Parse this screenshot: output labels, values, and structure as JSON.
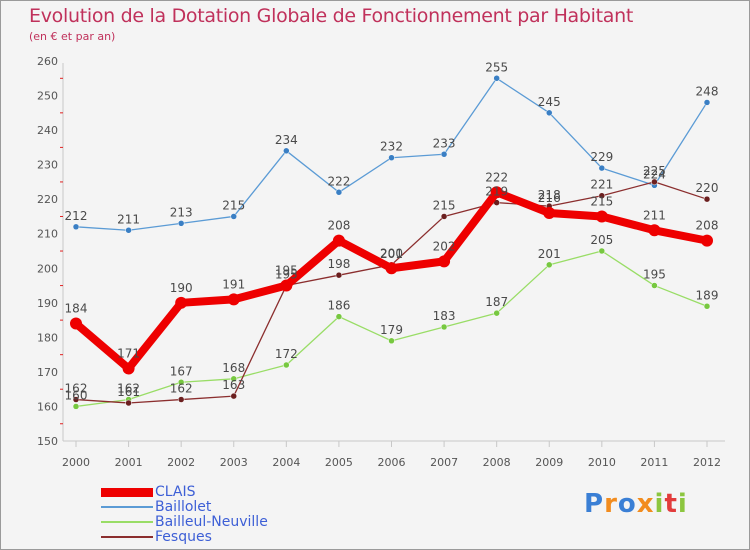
{
  "title": "Evolution de la Dotation Globale de Fonctionnement par Habitant",
  "subtitle": "(en € et par an)",
  "logo": {
    "letters": [
      "P",
      "r",
      "o",
      "x",
      "i",
      "t",
      "i"
    ],
    "colors": [
      "#3a7fd5",
      "#f28c1e",
      "#3a7fd5",
      "#f28c1e",
      "#8cc63f",
      "#e23b3b",
      "#8cc63f"
    ]
  },
  "chart_data": {
    "type": "line",
    "title": "Evolution de la Dotation Globale de Fonctionnement par Habitant",
    "subtitle": "(en € et par an)",
    "xlabel": "",
    "ylabel": "",
    "x": [
      "2000",
      "2001",
      "2002",
      "2003",
      "2004",
      "2005",
      "2006",
      "2007",
      "2008",
      "2009",
      "2010",
      "2011",
      "2012"
    ],
    "ylim": [
      150,
      260
    ],
    "yticks": [
      "150",
      "160",
      "170",
      "180",
      "190",
      "200",
      "210",
      "220",
      "230",
      "240",
      "250",
      "260"
    ],
    "grid": false,
    "legend": "bottom-left",
    "series": [
      {
        "name": "Baillolet",
        "color": "#5b9bd5",
        "point_color": "#3a7fc4",
        "values": [
          212,
          211,
          213,
          215,
          234,
          222,
          232,
          233,
          255,
          245,
          229,
          224,
          248
        ],
        "labels": [
          "212",
          "211",
          "213",
          "215",
          "234",
          "222",
          "232",
          "233",
          "255",
          "245",
          "229",
          "224",
          "248"
        ]
      },
      {
        "name": "Bailleul-Neuville",
        "color": "#99dd66",
        "point_color": "#77c840",
        "values": [
          160,
          162,
          167,
          168,
          172,
          186,
          179,
          183,
          187,
          201,
          205,
          195,
          189
        ],
        "labels": [
          "160",
          "162",
          "167",
          "168",
          "172",
          "186",
          "179",
          "183",
          "187",
          "201",
          "205",
          "195",
          "189"
        ]
      },
      {
        "name": "Fesques",
        "color": "#8b2e2e",
        "point_color": "#6b1f1f",
        "values": [
          162,
          161,
          162,
          163,
          195,
          198,
          201,
          215,
          219,
          218,
          221,
          225,
          220
        ],
        "labels": [
          "162",
          "161",
          "162",
          "163",
          "195",
          "198",
          "201",
          "215",
          "219",
          "218",
          "221",
          "225",
          "220"
        ]
      },
      {
        "name": "CLAIS",
        "color": "#ee0000",
        "point_color": "#ee0000",
        "values": [
          184,
          171,
          190,
          191,
          195,
          208,
          200,
          202,
          222,
          216,
          215,
          211,
          208
        ],
        "labels": [
          "184",
          "171",
          "190",
          "191",
          "195",
          "208",
          "200",
          "202",
          "222",
          "216",
          "215",
          "211",
          "208"
        ]
      }
    ]
  }
}
